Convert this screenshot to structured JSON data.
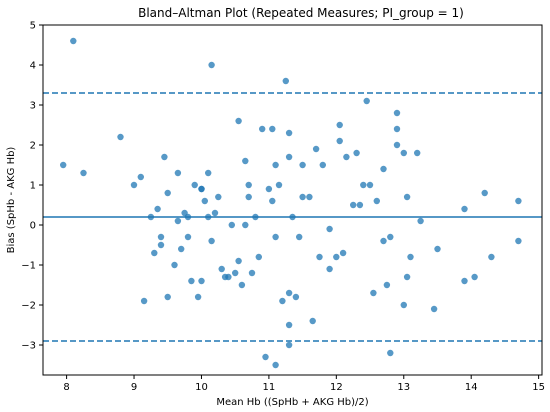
{
  "chart_data": {
    "type": "scatter",
    "title": "Bland–Altman Plot (Repeated Measures; PI_group = 1)",
    "xlabel": "Mean Hb ((SpHb + AKG Hb)/2)",
    "ylabel": "Bias (SpHb - AKG Hb)",
    "xlim": [
      7.65,
      15.05
    ],
    "ylim": [
      -3.75,
      5.0
    ],
    "xticks": [
      8,
      9,
      10,
      11,
      12,
      13,
      14,
      15
    ],
    "yticks": [
      -3,
      -2,
      -1,
      0,
      1,
      2,
      3,
      4,
      5
    ],
    "grid": false,
    "color": "#1f77b4",
    "lines": {
      "mean_bias": 0.2,
      "upper_loa": 3.3,
      "lower_loa": -2.9
    },
    "points": [
      [
        7.95,
        1.5
      ],
      [
        8.1,
        4.6
      ],
      [
        8.25,
        1.3
      ],
      [
        8.8,
        2.2
      ],
      [
        9.0,
        1.0
      ],
      [
        9.1,
        1.2
      ],
      [
        9.15,
        -1.9
      ],
      [
        9.25,
        0.2
      ],
      [
        9.3,
        -0.7
      ],
      [
        9.35,
        0.4
      ],
      [
        9.4,
        -0.3
      ],
      [
        9.4,
        -0.5
      ],
      [
        9.45,
        1.7
      ],
      [
        9.5,
        0.8
      ],
      [
        9.5,
        -1.8
      ],
      [
        9.6,
        -1.0
      ],
      [
        9.65,
        1.3
      ],
      [
        9.65,
        0.1
      ],
      [
        9.7,
        -0.6
      ],
      [
        9.75,
        0.3
      ],
      [
        9.8,
        0.2
      ],
      [
        9.8,
        -0.3
      ],
      [
        9.85,
        -1.4
      ],
      [
        9.9,
        1.0
      ],
      [
        9.95,
        -1.8
      ],
      [
        10.0,
        0.9
      ],
      [
        10.0,
        0.9
      ],
      [
        10.0,
        -1.4
      ],
      [
        10.05,
        0.6
      ],
      [
        10.1,
        1.3
      ],
      [
        10.1,
        0.2
      ],
      [
        10.15,
        4.0
      ],
      [
        10.15,
        -0.4
      ],
      [
        10.2,
        0.3
      ],
      [
        10.25,
        0.7
      ],
      [
        10.3,
        -1.1
      ],
      [
        10.35,
        -1.3
      ],
      [
        10.4,
        -1.3
      ],
      [
        10.45,
        0.0
      ],
      [
        10.5,
        -1.2
      ],
      [
        10.55,
        -0.9
      ],
      [
        10.55,
        2.6
      ],
      [
        10.6,
        -1.5
      ],
      [
        10.65,
        0.0
      ],
      [
        10.65,
        1.6
      ],
      [
        10.7,
        1.0
      ],
      [
        10.7,
        0.7
      ],
      [
        10.75,
        -1.2
      ],
      [
        10.8,
        0.2
      ],
      [
        10.85,
        -0.8
      ],
      [
        10.9,
        2.4
      ],
      [
        10.95,
        -3.3
      ],
      [
        11.0,
        0.9
      ],
      [
        11.05,
        2.4
      ],
      [
        11.05,
        0.6
      ],
      [
        11.1,
        -0.3
      ],
      [
        11.1,
        -3.5
      ],
      [
        11.1,
        1.5
      ],
      [
        11.15,
        1.0
      ],
      [
        11.2,
        -1.9
      ],
      [
        11.25,
        3.6
      ],
      [
        11.3,
        -3.0
      ],
      [
        11.3,
        -1.7
      ],
      [
        11.3,
        -2.5
      ],
      [
        11.3,
        2.3
      ],
      [
        11.3,
        1.7
      ],
      [
        11.35,
        0.2
      ],
      [
        11.4,
        -1.8
      ],
      [
        11.45,
        -0.3
      ],
      [
        11.5,
        1.5
      ],
      [
        11.5,
        0.7
      ],
      [
        11.6,
        0.7
      ],
      [
        11.65,
        -2.4
      ],
      [
        11.7,
        1.9
      ],
      [
        11.75,
        -0.8
      ],
      [
        11.8,
        1.5
      ],
      [
        11.9,
        -1.1
      ],
      [
        11.9,
        -0.1
      ],
      [
        12.0,
        -0.8
      ],
      [
        12.05,
        2.5
      ],
      [
        12.05,
        2.1
      ],
      [
        12.1,
        -0.7
      ],
      [
        12.15,
        1.7
      ],
      [
        12.25,
        0.5
      ],
      [
        12.3,
        1.8
      ],
      [
        12.35,
        0.5
      ],
      [
        12.4,
        1.0
      ],
      [
        12.45,
        3.1
      ],
      [
        12.5,
        1.0
      ],
      [
        12.55,
        -1.7
      ],
      [
        12.6,
        0.6
      ],
      [
        12.7,
        1.4
      ],
      [
        12.7,
        -0.4
      ],
      [
        12.75,
        -1.5
      ],
      [
        12.8,
        -3.2
      ],
      [
        12.8,
        -0.3
      ],
      [
        12.9,
        2.0
      ],
      [
        12.9,
        2.8
      ],
      [
        12.9,
        2.4
      ],
      [
        13.0,
        1.8
      ],
      [
        13.0,
        -2.0
      ],
      [
        13.05,
        0.7
      ],
      [
        13.05,
        -1.3
      ],
      [
        13.1,
        -0.8
      ],
      [
        13.2,
        1.8
      ],
      [
        13.25,
        0.1
      ],
      [
        13.45,
        -2.1
      ],
      [
        13.5,
        -0.6
      ],
      [
        13.9,
        0.4
      ],
      [
        13.9,
        -1.4
      ],
      [
        14.05,
        -1.3
      ],
      [
        14.2,
        0.8
      ],
      [
        14.3,
        -0.8
      ],
      [
        14.7,
        0.6
      ],
      [
        14.7,
        -0.4
      ]
    ]
  }
}
